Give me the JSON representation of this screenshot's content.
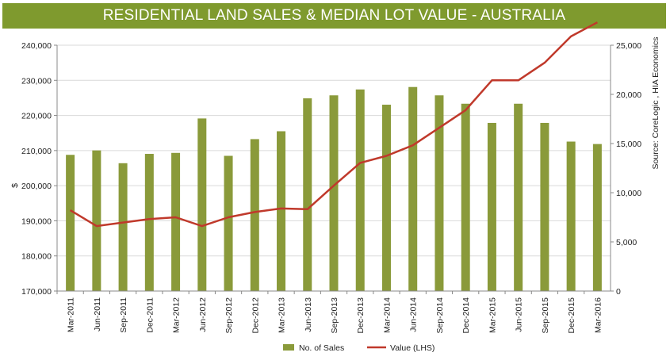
{
  "chart_data": {
    "type": "bar+line",
    "title": "RESIDENTIAL LAND SALES & MEDIAN LOT VALUE - AUSTRALIA",
    "categories": [
      "Mar-2011",
      "Jun-2011",
      "Sep-2011",
      "Dec-2011",
      "Mar-2012",
      "Jun-2012",
      "Sep-2012",
      "Dec-2012",
      "Mar-2013",
      "Jun-2013",
      "Sep-2013",
      "Dec-2013",
      "Mar-2014",
      "Jun-2014",
      "Sep-2014",
      "Dec-2014",
      "Mar-2015",
      "Jun-2015",
      "Sep-2015",
      "Dec-2015",
      "Mar-2016"
    ],
    "series": [
      {
        "name": "No. of Sales",
        "type": "bar",
        "axis": "right",
        "color": "#8a9a3a",
        "values": [
          13850,
          14300,
          13000,
          13950,
          14050,
          17550,
          13750,
          15450,
          16250,
          19600,
          19900,
          20500,
          18950,
          20750,
          19900,
          19050,
          17100,
          19050,
          17100,
          15200,
          14950
        ]
      },
      {
        "name": "Value (LHS)",
        "type": "line",
        "axis": "left",
        "color": "#c0392b",
        "values": [
          193000,
          188500,
          189500,
          190500,
          191000,
          188500,
          191000,
          192500,
          193500,
          193300,
          200000,
          206500,
          208500,
          211500,
          216500,
          221500,
          230000,
          230000,
          235000,
          242500,
          246500
        ]
      }
    ],
    "left_axis": {
      "label": "$",
      "ylim": [
        170000,
        240000
      ],
      "ticks": [
        "170,000",
        "180,000",
        "190,000",
        "200,000",
        "210,000",
        "220,000",
        "230,000",
        "240,000"
      ]
    },
    "right_axis": {
      "ylim": [
        0,
        25000
      ],
      "ticks": [
        "0",
        "5,000",
        "10,000",
        "15,000",
        "20,000",
        "25,000"
      ]
    },
    "source_note": "Source: CoreLogic , HIA Economics",
    "legend": [
      "No. of Sales",
      "Value (LHS)"
    ],
    "legend_position": "bottom-center"
  }
}
